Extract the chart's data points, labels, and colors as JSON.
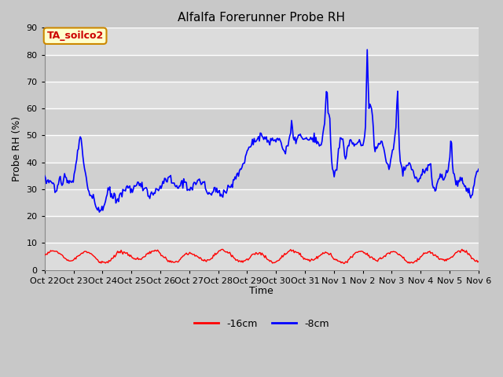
{
  "title": "Alfalfa Forerunner Probe RH",
  "ylabel": "Probe RH (%)",
  "xlabel": "Time",
  "ylim": [
    0,
    90
  ],
  "yticks": [
    0,
    10,
    20,
    30,
    40,
    50,
    60,
    70,
    80,
    90
  ],
  "background_color": "#c8c8c8",
  "plot_bg_color": "#dcdcdc",
  "grid_color": "#ffffff",
  "annotation_text": "TA_soilco2",
  "annotation_bg": "#ffffcc",
  "annotation_border": "#cc8800",
  "annotation_text_color": "#cc0000",
  "x_tick_labels": [
    "Oct 22",
    "Oct 23",
    "Oct 24",
    "Oct 25",
    "Oct 26",
    "Oct 27",
    "Oct 28",
    "Oct 29",
    "Oct 30",
    "Oct 31",
    "Nov 1",
    "Nov 2",
    "Nov 3",
    "Nov 4",
    "Nov 5",
    "Nov 6"
  ],
  "line_red_color": "#ff0000",
  "line_blue_color": "#0000ff",
  "legend_labels": [
    "-16cm",
    "-8cm"
  ],
  "legend_colors": [
    "#ff0000",
    "#0000ff"
  ],
  "n_points": 500
}
